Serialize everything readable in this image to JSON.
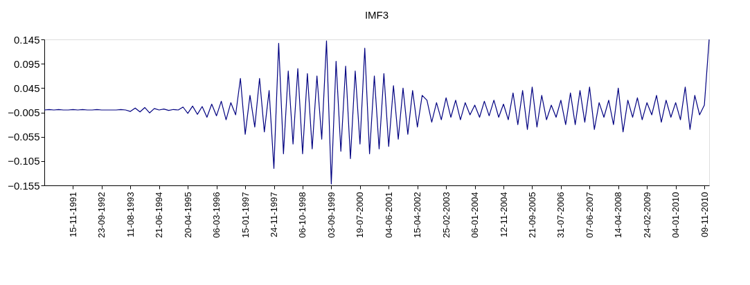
{
  "chart_data": {
    "type": "line",
    "title": "IMF3",
    "categories": [
      null,
      null,
      null,
      null,
      null,
      null,
      "15-11-1991",
      null,
      null,
      null,
      null,
      null,
      "23-09-1992",
      null,
      null,
      null,
      null,
      null,
      "11-08-1993",
      null,
      null,
      null,
      null,
      null,
      "21-06-1994",
      null,
      null,
      null,
      null,
      null,
      "20-04-1995",
      null,
      null,
      null,
      null,
      null,
      "06-03-1996",
      null,
      null,
      null,
      null,
      null,
      "15-01-1997",
      null,
      null,
      null,
      null,
      null,
      "24-11-1997",
      null,
      null,
      null,
      null,
      null,
      "06-10-1998",
      null,
      null,
      null,
      null,
      null,
      "03-09-1999",
      null,
      null,
      null,
      null,
      null,
      "19-07-2000",
      null,
      null,
      null,
      null,
      null,
      "04-06-2001",
      null,
      null,
      null,
      null,
      null,
      "15-04-2002",
      null,
      null,
      null,
      null,
      null,
      "25-02-2003",
      null,
      null,
      null,
      null,
      null,
      "06-01-2004",
      null,
      null,
      null,
      null,
      null,
      "12-11-2004",
      null,
      null,
      null,
      null,
      null,
      "21-09-2005",
      null,
      null,
      null,
      null,
      null,
      "31-07-2006",
      null,
      null,
      null,
      null,
      null,
      "07-06-2007",
      null,
      null,
      null,
      null,
      null,
      "14-04-2008",
      null,
      null,
      null,
      null,
      null,
      "24-02-2009",
      null,
      null,
      null,
      null,
      null,
      "04-01-2010",
      null,
      null,
      null,
      null,
      null,
      "09-11-2010",
      null
    ],
    "series": [
      {
        "color": "#000080",
        "values": [
          0,
          0.001,
          0,
          0.001,
          0,
          0,
          0.001,
          0,
          0.001,
          0,
          0,
          0.001,
          0,
          0,
          0,
          0,
          0.001,
          0,
          -0.003,
          0.004,
          -0.004,
          0.005,
          -0.006,
          0.003,
          0,
          0.002,
          -0.001,
          0.001,
          0,
          0.006,
          -0.007,
          0.008,
          -0.009,
          0.007,
          -0.015,
          0.012,
          -0.012,
          0.018,
          -0.02,
          0.015,
          -0.01,
          0.065,
          -0.05,
          0.03,
          -0.035,
          0.065,
          -0.045,
          0.04,
          -0.12,
          0.137,
          -0.09,
          0.08,
          -0.07,
          0.085,
          -0.09,
          0.075,
          -0.08,
          0.07,
          -0.06,
          0.142,
          -0.152,
          0.1,
          -0.085,
          0.09,
          -0.1,
          0.08,
          -0.07,
          0.127,
          -0.09,
          0.07,
          -0.08,
          0.075,
          -0.075,
          0.05,
          -0.06,
          0.045,
          -0.05,
          0.04,
          -0.035,
          0.03,
          0.02,
          -0.025,
          0.015,
          -0.02,
          0.025,
          -0.015,
          0.02,
          -0.02,
          0.015,
          -0.01,
          0.01,
          -0.015,
          0.018,
          -0.012,
          0.02,
          -0.015,
          0.012,
          -0.02,
          0.035,
          -0.03,
          0.04,
          -0.04,
          0.047,
          -0.035,
          0.03,
          -0.02,
          0.01,
          -0.015,
          0.02,
          -0.03,
          0.035,
          -0.03,
          0.04,
          -0.025,
          0.047,
          -0.04,
          0.015,
          -0.015,
          0.02,
          -0.03,
          0.045,
          -0.045,
          0.02,
          -0.015,
          0.025,
          -0.02,
          0.015,
          -0.01,
          0.03,
          -0.025,
          0.02,
          -0.015,
          0.015,
          -0.02,
          0.047,
          -0.04,
          0.03,
          -0.01,
          0.01,
          0.145
        ]
      }
    ],
    "ylim": [
      -0.155,
      0.145
    ],
    "yticks": [
      -0.155,
      -0.105,
      -0.055,
      -0.005,
      0.045,
      0.095,
      0.145
    ],
    "grid": false,
    "legend": false,
    "marker": "none",
    "line_style": "solid"
  }
}
